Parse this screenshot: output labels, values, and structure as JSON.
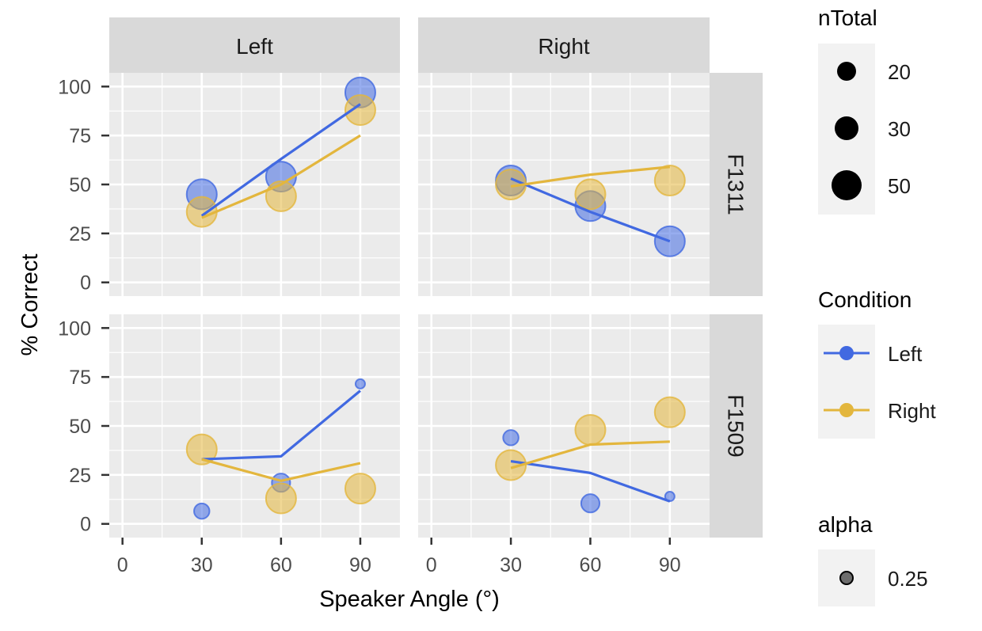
{
  "chart_data": {
    "type": "scatter",
    "xlabel": "Speaker Angle (°)",
    "ylabel": "% Correct",
    "x_ticks": [
      0,
      30,
      60,
      90
    ],
    "y_ticks": [
      0,
      25,
      50,
      75,
      100
    ],
    "xlim": [
      -5,
      105
    ],
    "ylim": [
      -7,
      107
    ],
    "col_facets": [
      "Left",
      "Right"
    ],
    "row_facets": [
      "F1311",
      "F1509"
    ],
    "colors": {
      "Left": "#4169E1",
      "Right": "#E3B63D"
    },
    "panel_bg": "#EBEBEB",
    "strip_bg": "#D9D9D9",
    "legend": {
      "size": {
        "title": "nTotal",
        "labels": [
          "20",
          "30",
          "50"
        ]
      },
      "color": {
        "title": "Condition",
        "labels": [
          "Left",
          "Right"
        ]
      },
      "alpha": {
        "title": "alpha",
        "labels": [
          "0.25"
        ]
      }
    },
    "panels": [
      {
        "row": "F1311",
        "col": "Left",
        "series": [
          {
            "name": "Left",
            "points": [
              {
                "x": 30,
                "y": 45,
                "n": 50
              },
              {
                "x": 60,
                "y": 54,
                "n": 50
              },
              {
                "x": 90,
                "y": 97,
                "n": 50
              }
            ],
            "line": [
              {
                "x": 30,
                "y": 34
              },
              {
                "x": 60,
                "y": 63
              },
              {
                "x": 90,
                "y": 91
              }
            ]
          },
          {
            "name": "Right",
            "points": [
              {
                "x": 30,
                "y": 36,
                "n": 50
              },
              {
                "x": 60,
                "y": 44,
                "n": 50
              },
              {
                "x": 90,
                "y": 88,
                "n": 50
              }
            ],
            "line": [
              {
                "x": 30,
                "y": 33
              },
              {
                "x": 60,
                "y": 50
              },
              {
                "x": 90,
                "y": 75
              }
            ]
          }
        ]
      },
      {
        "row": "F1311",
        "col": "Right",
        "series": [
          {
            "name": "Left",
            "points": [
              {
                "x": 30,
                "y": 52,
                "n": 50
              },
              {
                "x": 60,
                "y": 39,
                "n": 50
              },
              {
                "x": 90,
                "y": 21,
                "n": 50
              }
            ],
            "line": [
              {
                "x": 30,
                "y": 53
              },
              {
                "x": 60,
                "y": 36
              },
              {
                "x": 90,
                "y": 21
              }
            ]
          },
          {
            "name": "Right",
            "points": [
              {
                "x": 30,
                "y": 50,
                "n": 50
              },
              {
                "x": 60,
                "y": 45,
                "n": 50
              },
              {
                "x": 90,
                "y": 52,
                "n": 50
              }
            ],
            "line": [
              {
                "x": 30,
                "y": 49
              },
              {
                "x": 60,
                "y": 55
              },
              {
                "x": 90,
                "y": 59
              }
            ]
          }
        ]
      },
      {
        "row": "F1509",
        "col": "Left",
        "series": [
          {
            "name": "Left",
            "points": [
              {
                "x": 30,
                "y": 6.5,
                "n": 25
              },
              {
                "x": 60,
                "y": 21,
                "n": 30
              },
              {
                "x": 90,
                "y": 71.5,
                "n": 15
              }
            ],
            "line": [
              {
                "x": 30,
                "y": 33
              },
              {
                "x": 60,
                "y": 34.5
              },
              {
                "x": 90,
                "y": 68
              }
            ]
          },
          {
            "name": "Right",
            "points": [
              {
                "x": 30,
                "y": 38,
                "n": 50
              },
              {
                "x": 60,
                "y": 13,
                "n": 50
              },
              {
                "x": 90,
                "y": 18,
                "n": 50
              }
            ],
            "line": [
              {
                "x": 30,
                "y": 33
              },
              {
                "x": 60,
                "y": 22
              },
              {
                "x": 90,
                "y": 31
              }
            ]
          }
        ]
      },
      {
        "row": "F1509",
        "col": "Right",
        "series": [
          {
            "name": "Left",
            "points": [
              {
                "x": 30,
                "y": 44,
                "n": 25
              },
              {
                "x": 60,
                "y": 10.5,
                "n": 30
              },
              {
                "x": 90,
                "y": 14,
                "n": 15
              }
            ],
            "line": [
              {
                "x": 30,
                "y": 32
              },
              {
                "x": 60,
                "y": 26
              },
              {
                "x": 90,
                "y": 11.5
              }
            ]
          },
          {
            "name": "Right",
            "points": [
              {
                "x": 30,
                "y": 30,
                "n": 50
              },
              {
                "x": 60,
                "y": 48,
                "n": 50
              },
              {
                "x": 90,
                "y": 57,
                "n": 50
              }
            ],
            "line": [
              {
                "x": 30,
                "y": 28.5
              },
              {
                "x": 60,
                "y": 40.5
              },
              {
                "x": 90,
                "y": 42
              }
            ]
          }
        ]
      }
    ]
  }
}
